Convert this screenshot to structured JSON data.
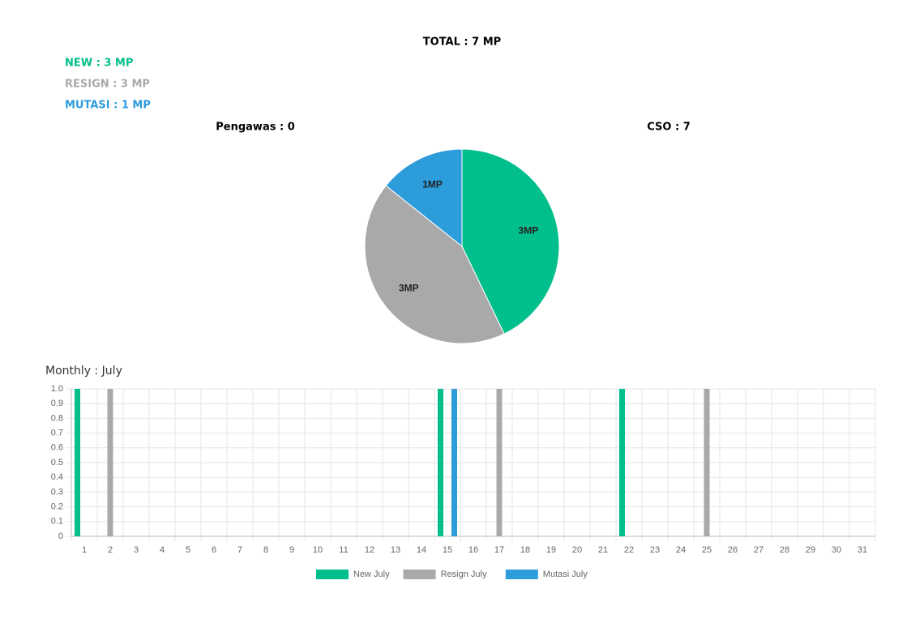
{
  "header": {
    "title": "TOTAL : 7 MP",
    "summary": [
      {
        "text": "NEW : 3 MP",
        "color": "#00bf8c"
      },
      {
        "text": "RESIGN : 3 MP",
        "color": "#a9a9a9"
      },
      {
        "text": "MUTASI : 1 MP",
        "color": "#2d9cdb"
      }
    ],
    "left_heading": "Pengawas : 0",
    "right_heading": "CSO : 7"
  },
  "chart_data": [
    {
      "type": "pie",
      "values": [
        3,
        3,
        1
      ],
      "value_labels": [
        "3MP",
        "3MP",
        "1MP"
      ],
      "colors": [
        "#00bf8c",
        "#a9a9a9",
        "#2d9cdb"
      ]
    },
    {
      "type": "bar",
      "title": "Monthly : July",
      "categories": [
        "1",
        "2",
        "3",
        "4",
        "5",
        "6",
        "7",
        "8",
        "9",
        "10",
        "11",
        "12",
        "13",
        "14",
        "15",
        "16",
        "17",
        "18",
        "19",
        "20",
        "21",
        "22",
        "23",
        "24",
        "25",
        "26",
        "27",
        "28",
        "29",
        "30",
        "31"
      ],
      "series": [
        {
          "name": "New July",
          "color": "#00bf8c",
          "values": [
            1,
            0,
            0,
            0,
            0,
            0,
            0,
            0,
            0,
            0,
            0,
            0,
            0,
            0,
            1,
            0,
            0,
            0,
            0,
            0,
            0,
            1,
            0,
            0,
            0,
            0,
            0,
            0,
            0,
            0,
            0
          ]
        },
        {
          "name": "Resign July",
          "color": "#a9a9a9",
          "values": [
            0,
            1,
            0,
            0,
            0,
            0,
            0,
            0,
            0,
            0,
            0,
            0,
            0,
            0,
            0,
            0,
            1,
            0,
            0,
            0,
            0,
            0,
            0,
            0,
            1,
            0,
            0,
            0,
            0,
            0,
            0
          ]
        },
        {
          "name": "Mutasi July",
          "color": "#2d9cdb",
          "values": [
            0,
            0,
            0,
            0,
            0,
            0,
            0,
            0,
            0,
            0,
            0,
            0,
            0,
            0,
            1,
            0,
            0,
            0,
            0,
            0,
            0,
            0,
            0,
            0,
            0,
            0,
            0,
            0,
            0,
            0,
            0
          ]
        }
      ],
      "ylim": [
        0,
        1
      ],
      "yticks": [
        0,
        0.1,
        0.2,
        0.3,
        0.4,
        0.5,
        0.6,
        0.7,
        0.8,
        0.9,
        {
          "value": 1,
          "label": "1.0"
        }
      ],
      "grid": true,
      "legend": "bottom"
    }
  ]
}
